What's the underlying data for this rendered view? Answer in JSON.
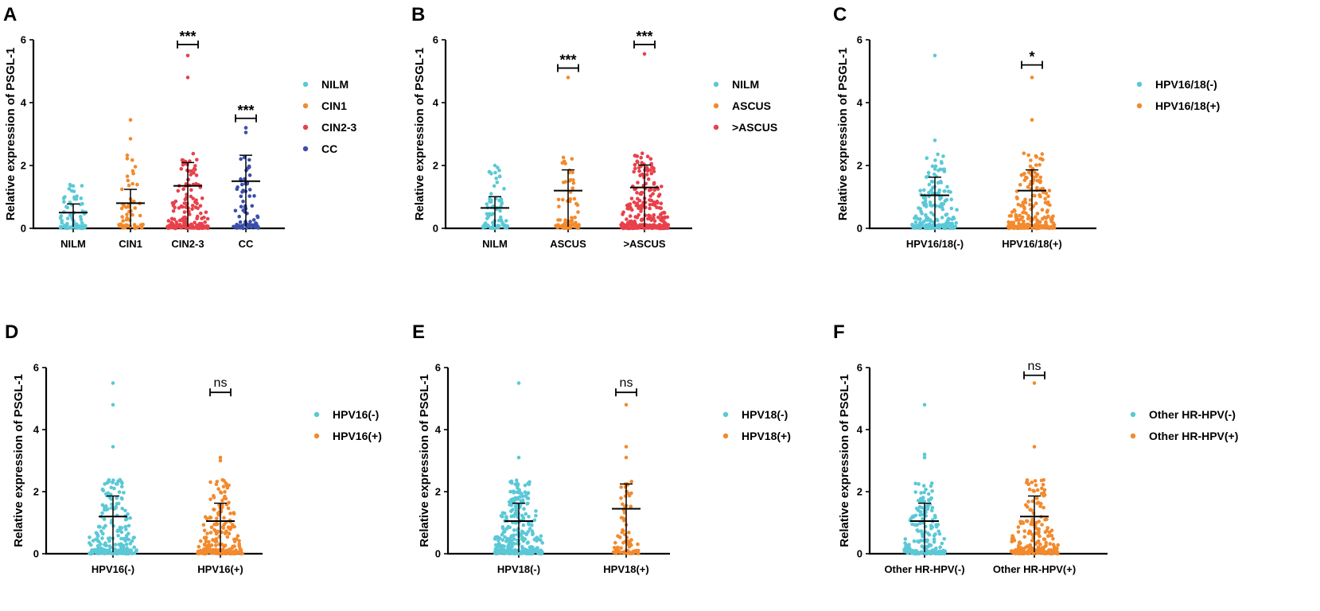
{
  "figure": "PSGL-1 relative expression by cytology and HPV status",
  "chart_data": [
    {
      "panel": "A",
      "type": "scatter",
      "ylabel": "Relative expression of PSGL-1",
      "ylim": [
        0,
        6
      ],
      "yticks": [
        0,
        2,
        4,
        6
      ],
      "categories": [
        "NILM",
        "CIN1",
        "CIN2-3",
        "CC"
      ],
      "legend": [
        "NILM",
        "CIN1",
        "CIN2-3",
        "CC"
      ],
      "colors": [
        "#5bc8d6",
        "#f28a2e",
        "#e8414b",
        "#3b4fa8"
      ],
      "n": [
        80,
        55,
        180,
        75
      ],
      "means": [
        0.5,
        0.8,
        1.35,
        1.5
      ],
      "maxima": [
        1.4,
        3.45,
        5.5,
        3.2
      ],
      "outliers": [
        [
          1.35
        ],
        [
          3.45,
          2.85
        ],
        [
          5.5,
          4.8
        ],
        [
          3.2,
          3.05
        ]
      ],
      "significance": [
        {
          "group": 2,
          "label": "***",
          "y": 5.85
        },
        {
          "group": 3,
          "label": "***",
          "y": 3.5
        }
      ]
    },
    {
      "panel": "B",
      "type": "scatter",
      "ylabel": "Relative expression of PSGL-1",
      "ylim": [
        0,
        6
      ],
      "yticks": [
        0,
        2,
        4,
        6
      ],
      "categories": [
        "NILM",
        "ASCUS",
        ">ASCUS"
      ],
      "legend": [
        "NILM",
        "ASCUS",
        ">ASCUS"
      ],
      "colors": [
        "#5bc8d6",
        "#f28a2e",
        "#e8414b"
      ],
      "n": [
        80,
        70,
        260
      ],
      "means": [
        0.65,
        1.2,
        1.3
      ],
      "maxima": [
        2.0,
        4.8,
        5.55
      ],
      "outliers": [
        [
          2.0
        ],
        [
          4.8
        ],
        [
          5.55
        ]
      ],
      "significance": [
        {
          "group": 1,
          "label": "***",
          "y": 5.1
        },
        {
          "group": 2,
          "label": "***",
          "y": 5.85
        }
      ]
    },
    {
      "panel": "C",
      "type": "scatter",
      "ylabel": "Relative expression of PSGL-1",
      "ylim": [
        0,
        6
      ],
      "yticks": [
        0,
        2,
        4,
        6
      ],
      "categories": [
        "HPV16/18(-)",
        "HPV16/18(+)"
      ],
      "legend": [
        "HPV16/18(-)",
        "HPV16/18(+)"
      ],
      "colors": [
        "#5bc8d6",
        "#f28a2e"
      ],
      "n": [
        200,
        220
      ],
      "means": [
        1.05,
        1.2
      ],
      "maxima": [
        5.5,
        4.8
      ],
      "outliers": [
        [
          5.5,
          2.8
        ],
        [
          4.8,
          3.45
        ]
      ],
      "significance": [
        {
          "group": 1,
          "label": "*",
          "y": 5.2
        }
      ]
    },
    {
      "panel": "D",
      "type": "scatter",
      "ylabel": "Relative expression of PSGL-1",
      "ylim": [
        0,
        6
      ],
      "yticks": [
        0,
        2,
        4,
        6
      ],
      "categories": [
        "HPV16(-)",
        "HPV16(+)"
      ],
      "legend": [
        "HPV16(-)",
        "HPV16(+)"
      ],
      "colors": [
        "#5bc8d6",
        "#f28a2e"
      ],
      "n": [
        220,
        200
      ],
      "means": [
        1.2,
        1.05
      ],
      "maxima": [
        5.5,
        3.1
      ],
      "outliers": [
        [
          5.5,
          4.8,
          3.45
        ],
        [
          3.1,
          3.0
        ]
      ],
      "significance": [
        {
          "group": 1,
          "label": "ns",
          "y": 5.2
        }
      ]
    },
    {
      "panel": "E",
      "type": "scatter",
      "ylabel": "Relative expression of PSGL-1",
      "ylim": [
        0,
        6
      ],
      "yticks": [
        0,
        2,
        4,
        6
      ],
      "categories": [
        "HPV18(-)",
        "HPV18(+)"
      ],
      "legend": [
        "HPV18(-)",
        "HPV18(+)"
      ],
      "colors": [
        "#5bc8d6",
        "#f28a2e"
      ],
      "n": [
        320,
        80
      ],
      "means": [
        1.05,
        1.45
      ],
      "maxima": [
        5.5,
        4.8
      ],
      "outliers": [
        [
          5.5,
          3.1
        ],
        [
          4.8,
          3.45,
          3.1
        ]
      ],
      "significance": [
        {
          "group": 1,
          "label": "ns",
          "y": 5.2
        }
      ]
    },
    {
      "panel": "F",
      "type": "scatter",
      "ylabel": "Relative expression of PSGL-1",
      "ylim": [
        0,
        6
      ],
      "yticks": [
        0,
        2,
        4,
        6
      ],
      "categories": [
        "Other HR-HPV(-)",
        "Other HR-HPV(+)"
      ],
      "legend": [
        "Other HR-HPV(-)",
        "Other HR-HPV(+)"
      ],
      "colors": [
        "#5bc8d6",
        "#f28a2e"
      ],
      "n": [
        180,
        220
      ],
      "means": [
        1.05,
        1.2
      ],
      "maxima": [
        4.8,
        5.5
      ],
      "outliers": [
        [
          4.8,
          3.2,
          3.1
        ],
        [
          5.5,
          3.45
        ]
      ],
      "significance": [
        {
          "group": 1,
          "label": "ns",
          "y": 5.75
        }
      ]
    }
  ]
}
